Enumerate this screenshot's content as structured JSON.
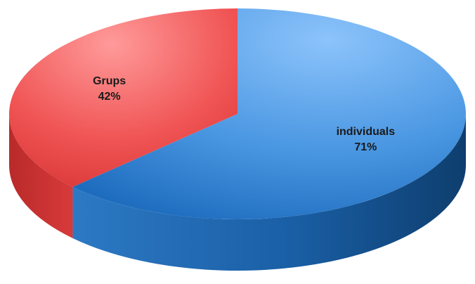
{
  "chart_data": {
    "type": "pie",
    "style": "3d",
    "title": "",
    "slices": [
      {
        "label": "individuals",
        "value": 71,
        "value_label": "71%",
        "color": "#2f7fd0"
      },
      {
        "label": "Grups",
        "value": 42,
        "value_label": "42%",
        "color": "#e84444"
      }
    ],
    "start_slice": "individuals",
    "direction": "clockwise",
    "legend": false
  }
}
